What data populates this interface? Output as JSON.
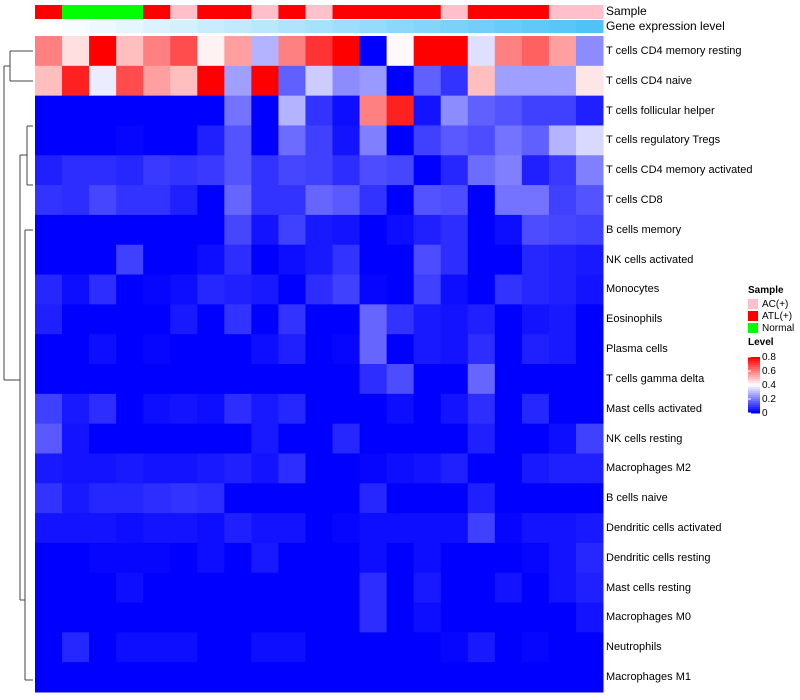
{
  "chart_data": {
    "type": "heatmap",
    "annotation_labels": [
      "Sample",
      "Gene expression level"
    ],
    "sample_groups": [
      "ATL(+)",
      "Normal",
      "Normal",
      "Normal",
      "ATL(+)",
      "AC(+)",
      "ATL(+)",
      "ATL(+)",
      "AC(+)",
      "ATL(+)",
      "AC(+)",
      "ATL(+)",
      "ATL(+)",
      "ATL(+)",
      "ATL(+)",
      "AC(+)",
      "ATL(+)",
      "ATL(+)",
      "ATL(+)",
      "AC(+)",
      "AC(+)"
    ],
    "gene_expression_level": [
      0,
      0.05,
      0.1,
      0.15,
      0.2,
      0.25,
      0.3,
      0.35,
      0.4,
      0.45,
      0.5,
      0.55,
      0.6,
      0.65,
      0.7,
      0.75,
      0.8,
      0.85,
      0.9,
      0.95,
      1
    ],
    "rows": [
      "T cells CD4 memory resting",
      "T cells CD4 naive",
      "T cells follicular helper",
      "T cells regulatory  Tregs",
      "T cells CD4 memory activated",
      "T cells CD8",
      "B cells memory",
      "NK cells activated",
      "Monocytes",
      "Eosinophils",
      "Plasma cells",
      "T cells gamma delta",
      "Mast cells activated",
      "NK cells resting",
      "Macrophages M2",
      "B cells naive",
      "Dendritic cells activated",
      "Dendritic cells resting",
      "Mast cells resting",
      "Macrophages M0",
      "Neutrophils",
      "Macrophages M1"
    ],
    "values": [
      [
        0.6,
        0.45,
        0.8,
        0.5,
        0.6,
        0.68,
        0.42,
        0.55,
        0.28,
        0.6,
        0.72,
        0.8,
        0,
        0.41,
        0.8,
        0.8,
        0.35,
        0.6,
        0.65,
        0.55,
        0.22
      ],
      [
        0.5,
        0.75,
        0.37,
        0.68,
        0.55,
        0.5,
        0.8,
        0.25,
        0.8,
        0.15,
        0.32,
        0.22,
        0.24,
        0,
        0.15,
        0.08,
        0.5,
        0.25,
        0.25,
        0.25,
        0.44
      ],
      [
        0,
        0,
        0,
        0,
        0,
        0,
        0,
        0.18,
        0,
        0.28,
        0.08,
        0.02,
        0.6,
        0.75,
        0.03,
        0.22,
        0.15,
        0.13,
        0.1,
        0.1,
        0.05
      ],
      [
        0,
        0,
        0,
        0.01,
        0,
        0,
        0.05,
        0.13,
        0,
        0.17,
        0.1,
        0.03,
        0.2,
        0,
        0.1,
        0.14,
        0.12,
        0.18,
        0.15,
        0.28,
        0.34
      ],
      [
        0.05,
        0.07,
        0.07,
        0.06,
        0.09,
        0.08,
        0.09,
        0.13,
        0.08,
        0.11,
        0.1,
        0.07,
        0.12,
        0.11,
        0,
        0.06,
        0.17,
        0.2,
        0.05,
        0.09,
        0.2
      ],
      [
        0.08,
        0.07,
        0.11,
        0.08,
        0.08,
        0.05,
        0,
        0.16,
        0.08,
        0.08,
        0.16,
        0.14,
        0.08,
        0,
        0.13,
        0.12,
        0,
        0.18,
        0.18,
        0.1,
        0.13
      ],
      [
        0,
        0,
        0,
        0,
        0,
        0,
        0,
        0.11,
        0.03,
        0.1,
        0.04,
        0.03,
        0,
        0.02,
        0.05,
        0.07,
        0,
        0.02,
        0.12,
        0.11,
        0.1
      ],
      [
        0,
        0,
        0,
        0.1,
        0,
        0,
        0.02,
        0.07,
        0,
        0.02,
        0.04,
        0.08,
        0,
        0,
        0.12,
        0.07,
        0,
        0,
        0.06,
        0.05,
        0.04
      ],
      [
        0.06,
        0.02,
        0.07,
        0,
        0.01,
        0.02,
        0.06,
        0.05,
        0.04,
        0,
        0.07,
        0.1,
        0.01,
        0,
        0.1,
        0.02,
        0,
        0.08,
        0.06,
        0.05,
        0.03
      ],
      [
        0.05,
        0,
        0,
        0,
        0,
        0.04,
        0,
        0.08,
        0,
        0.08,
        0,
        0,
        0.16,
        0.08,
        0.04,
        0.03,
        0.05,
        0,
        0.03,
        0.04,
        0
      ],
      [
        0,
        0,
        0.02,
        0,
        0.01,
        0,
        0,
        0,
        0.02,
        0.05,
        0,
        0.01,
        0.16,
        0,
        0.04,
        0.03,
        0.07,
        0,
        0.05,
        0.04,
        0
      ],
      [
        0,
        0,
        0,
        0,
        0,
        0,
        0,
        0,
        0,
        0,
        0,
        0,
        0.07,
        0.12,
        0,
        0,
        0.16,
        0,
        0,
        0,
        0
      ],
      [
        0.1,
        0.04,
        0.07,
        0,
        0.02,
        0.03,
        0.02,
        0.07,
        0.04,
        0.06,
        0,
        0,
        0,
        0.02,
        0,
        0.03,
        0.07,
        0,
        0.06,
        0,
        0
      ],
      [
        0.14,
        0.03,
        0,
        0,
        0,
        0,
        0,
        0,
        0.04,
        0,
        0,
        0.06,
        0,
        0,
        0,
        0,
        0.05,
        0,
        0,
        0.02,
        0.1
      ],
      [
        0.04,
        0.03,
        0.03,
        0.04,
        0.03,
        0.03,
        0.04,
        0.05,
        0.03,
        0.07,
        0,
        0,
        0.01,
        0.02,
        0.03,
        0.05,
        0,
        0,
        0.04,
        0.05,
        0.05
      ],
      [
        0.08,
        0.04,
        0.06,
        0.06,
        0.07,
        0.08,
        0.07,
        0,
        0,
        0,
        0,
        0,
        0.06,
        0,
        0,
        0,
        0.05,
        0,
        0,
        0,
        0
      ],
      [
        0.03,
        0.03,
        0.03,
        0.02,
        0.03,
        0.03,
        0.02,
        0.05,
        0.03,
        0.03,
        0,
        0.01,
        0.02,
        0.02,
        0.02,
        0.02,
        0.1,
        0.01,
        0.03,
        0.03,
        0.04
      ],
      [
        0,
        0,
        0.01,
        0.01,
        0.01,
        0,
        0.02,
        0,
        0.04,
        0,
        0,
        0,
        0.02,
        0,
        0.02,
        0,
        0,
        0,
        0.01,
        0.03,
        0.06
      ],
      [
        0,
        0,
        0,
        0.02,
        0,
        0,
        0,
        0,
        0,
        0,
        0,
        0,
        0.07,
        0,
        0.04,
        0,
        0,
        0.03,
        0,
        0.03,
        0.05
      ],
      [
        0,
        0,
        0,
        0,
        0,
        0,
        0,
        0,
        0,
        0,
        0,
        0,
        0.07,
        0,
        0.02,
        0,
        0,
        0,
        0,
        0,
        0.03
      ],
      [
        0,
        0.06,
        0,
        0.02,
        0.02,
        0.02,
        0,
        0,
        0.02,
        0.02,
        0,
        0,
        0,
        0,
        0,
        0.01,
        0.04,
        0,
        0.01,
        0,
        0
      ],
      [
        0,
        0,
        0,
        0,
        0,
        0,
        0,
        0,
        0,
        0,
        0,
        0,
        0,
        0,
        0,
        0,
        0,
        0,
        0,
        0,
        0
      ]
    ],
    "color_scale": {
      "min": 0,
      "mid": 0.4,
      "max": 0.8,
      "low": "#0000FF",
      "midColor": "#FFFFFF",
      "high": "#FF0000"
    },
    "legend": {
      "sample_title": "Sample",
      "sample_items": [
        {
          "label": "AC(+)",
          "color": "#FFC0CB"
        },
        {
          "label": "ATL(+)",
          "color": "#FF0000"
        },
        {
          "label": "Normal",
          "color": "#00FF00"
        }
      ],
      "level_title": "Level",
      "level_ticks": [
        "0.8",
        "0.6",
        "0.4",
        "0.2",
        "0"
      ],
      "placement": "right"
    },
    "gene_expr_colors": {
      "low": "#FFFFFF",
      "high": "#4FC3F7"
    }
  }
}
